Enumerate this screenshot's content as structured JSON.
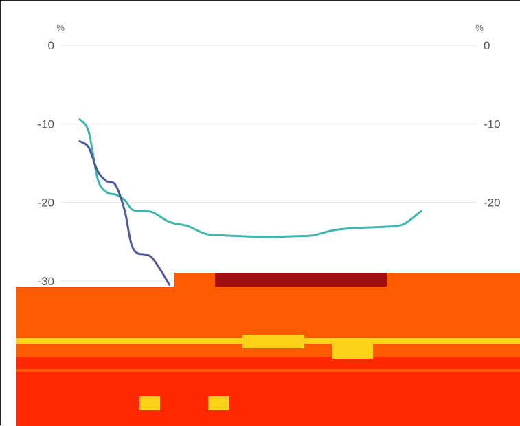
{
  "chart_data": {
    "type": "line",
    "unit_left": "%",
    "unit_right": "%",
    "ylim": [
      -30,
      0
    ],
    "y_ticks": [
      0,
      -10,
      -20,
      -30
    ],
    "y_tick_labels_left": [
      "0",
      "-10",
      "-20",
      "-30"
    ],
    "y_tick_labels_right": [
      "0",
      "-10",
      "-20"
    ],
    "grid": true,
    "x": [
      0,
      0.5,
      1,
      1.5,
      2,
      2.5,
      3,
      4,
      5,
      6,
      7,
      8,
      9,
      10,
      11,
      12,
      13,
      14,
      15,
      16,
      17,
      18,
      19
    ],
    "series": [
      {
        "color": "#3fb7ad",
        "values": [
          -9.4,
          -11,
          -17,
          -18.7,
          -19,
          -19.7,
          -21,
          -21.2,
          -22.5,
          -23,
          -24,
          -24.2,
          -24.3,
          -24.4,
          -24.4,
          -24.3,
          -24.2,
          -23.6,
          -23.3,
          -23.2,
          -23.1,
          -22.8,
          -21.1
        ]
      },
      {
        "color": "#4f5a9a",
        "values": [
          -12.2,
          -13,
          -16,
          -17.3,
          -17.8,
          -21,
          -26,
          -27,
          -30.5,
          null,
          null,
          null,
          null,
          null,
          null,
          null,
          null,
          null,
          null,
          null,
          null,
          null,
          null
        ]
      }
    ]
  },
  "colors": {
    "gridline": "#e5e5e5",
    "tick_text": "#555555",
    "corrupt_orange": "#ff5a00",
    "corrupt_red": "#ff2a00",
    "corrupt_yellow": "#ffd21a",
    "corrupt_dark": "#a01010"
  }
}
